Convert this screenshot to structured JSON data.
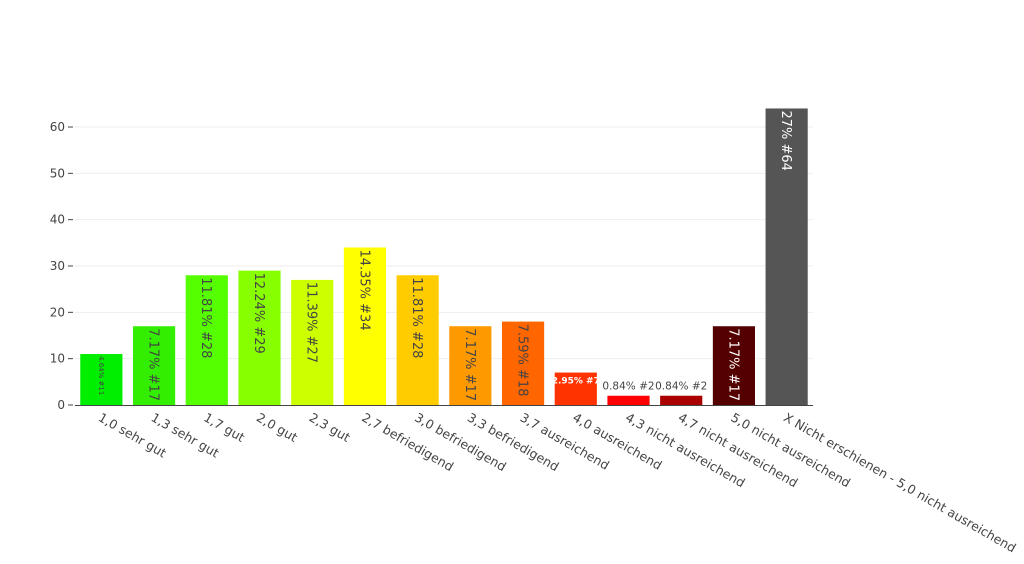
{
  "chart_data": {
    "type": "bar",
    "title": "",
    "xlabel": "",
    "ylabel": "",
    "ylim": [
      0,
      65
    ],
    "yticks": [
      0,
      10,
      20,
      30,
      40,
      50,
      60
    ],
    "grid": true,
    "categories": [
      "1,0 sehr gut",
      "1,3 sehr gut",
      "1,7 gut",
      "2,0 gut",
      "2,3 gut",
      "2,7 befriedigend",
      "3,0 befriedigend",
      "3,3 befriedigend",
      "3,7 ausreichend",
      "4,0 ausreichend",
      "4,3 nicht ausreichend",
      "4,7 nicht ausreichend",
      "5,0 nicht ausreichend",
      "X Nicht erschienen - 5,0 nicht ausreichend"
    ],
    "values": [
      11,
      17,
      28,
      29,
      27,
      34,
      28,
      17,
      18,
      7,
      2,
      2,
      17,
      64
    ],
    "labels": [
      "4.64% #11",
      "7.17% #17",
      "11.81% #28",
      "12.24% #29",
      "11.39% #27",
      "14.35% #34",
      "11.81% #28",
      "7.17% #17",
      "7.59% #18",
      "2.95% #7",
      "0.84% #2",
      "0.84% #2",
      "7.17% #17",
      "27% #64"
    ],
    "colors": [
      "#00ee00",
      "#33ee00",
      "#55ff00",
      "#88ff00",
      "#ccff00",
      "#ffff00",
      "#ffcc00",
      "#ff9900",
      "#ff6600",
      "#ff3300",
      "#ff0000",
      "#aa0000",
      "#550000",
      "#555555"
    ],
    "label_colors": [
      "#444444",
      "#444444",
      "#444444",
      "#444444",
      "#444444",
      "#444444",
      "#444444",
      "#444444",
      "#444444",
      "#ffffff",
      "#444444",
      "#444444",
      "#ffffff",
      "#ffffff"
    ]
  }
}
